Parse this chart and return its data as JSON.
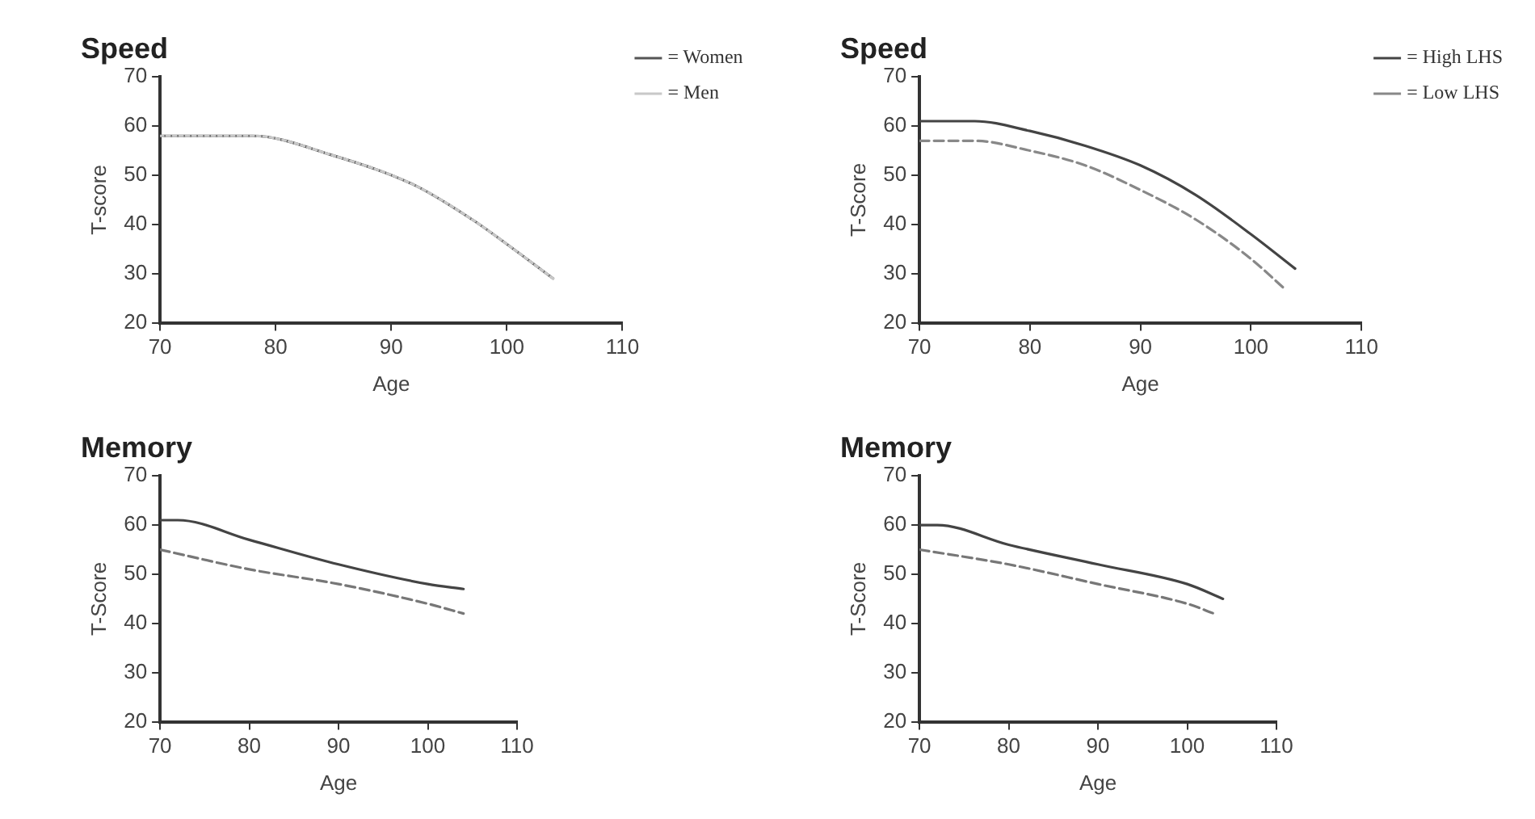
{
  "chart_data": [
    {
      "type": "line",
      "title": "Speed",
      "xlabel": "Age",
      "ylabel": "T-score",
      "xlim": [
        70,
        110
      ],
      "xticks": [
        70,
        80,
        90,
        100,
        110
      ],
      "ylim": [
        20,
        70
      ],
      "yticks": [
        20,
        30,
        40,
        50,
        60,
        70
      ],
      "grid": false,
      "legend": "top right",
      "marker": "none",
      "series": [
        {
          "name": "= Women",
          "color": "#555555",
          "line_style": "solid",
          "x": [
            70,
            78,
            85,
            92,
            97,
            100,
            104
          ],
          "values": [
            58,
            58,
            54,
            48,
            41,
            36,
            29
          ]
        },
        {
          "name": "= Men",
          "color": "#c8c8c8",
          "line_style": "dotted",
          "x": [
            70,
            78,
            85,
            92,
            97,
            100,
            104
          ],
          "values": [
            58,
            58,
            54,
            48,
            41,
            36,
            29
          ]
        }
      ]
    },
    {
      "type": "line",
      "title": "Speed",
      "xlabel": "Age",
      "ylabel": "T-Score",
      "xlim": [
        70,
        110
      ],
      "xticks": [
        70,
        80,
        90,
        100,
        110
      ],
      "ylim": [
        20,
        70
      ],
      "yticks": [
        20,
        30,
        40,
        50,
        60,
        70
      ],
      "grid": false,
      "legend": "top right",
      "marker": "none",
      "series": [
        {
          "name": "= High LHS",
          "color": "#444444",
          "line_style": "solid",
          "x": [
            70,
            75,
            80,
            85,
            90,
            95,
            100,
            104
          ],
          "values": [
            61,
            61,
            59,
            56,
            52,
            46,
            38,
            31
          ]
        },
        {
          "name": "= Low LHS",
          "color": "#888888",
          "line_style": "dashed",
          "x": [
            70,
            75,
            80,
            85,
            90,
            95,
            100,
            103
          ],
          "values": [
            57,
            57,
            55,
            52,
            47,
            41,
            33,
            27
          ]
        }
      ]
    },
    {
      "type": "line",
      "title": "Memory",
      "xlabel": "Age",
      "ylabel": "T-Score",
      "xlim": [
        70,
        110
      ],
      "xticks": [
        70,
        80,
        90,
        100,
        110
      ],
      "ylim": [
        20,
        70
      ],
      "yticks": [
        20,
        30,
        40,
        50,
        60,
        70
      ],
      "grid": false,
      "legend": false,
      "marker": "none",
      "series": [
        {
          "color": "#444444",
          "line_style": "solid",
          "x": [
            70,
            72,
            80,
            90,
            100,
            104
          ],
          "values": [
            61,
            61,
            57,
            52,
            48,
            47
          ]
        },
        {
          "color": "#777777",
          "line_style": "dashed",
          "x": [
            70,
            80,
            90,
            100,
            104
          ],
          "values": [
            55,
            51,
            48,
            44,
            42
          ]
        }
      ]
    },
    {
      "type": "line",
      "title": "Memory",
      "xlabel": "Age",
      "ylabel": "T-Score",
      "xlim": [
        70,
        110
      ],
      "xticks": [
        70,
        80,
        90,
        100,
        110
      ],
      "ylim": [
        20,
        70
      ],
      "yticks": [
        20,
        30,
        40,
        50,
        60,
        70
      ],
      "grid": false,
      "legend": false,
      "marker": "none",
      "series": [
        {
          "color": "#444444",
          "line_style": "solid",
          "x": [
            70,
            72,
            80,
            90,
            100,
            104
          ],
          "values": [
            60,
            60,
            56,
            52,
            48,
            45
          ]
        },
        {
          "color": "#777777",
          "line_style": "dashed",
          "x": [
            70,
            80,
            90,
            100,
            103
          ],
          "values": [
            55,
            52,
            48,
            44,
            42
          ]
        }
      ]
    }
  ]
}
